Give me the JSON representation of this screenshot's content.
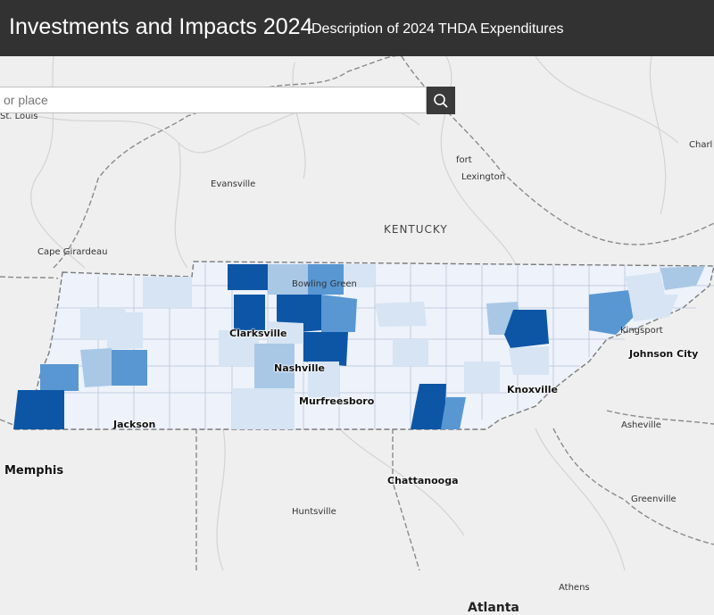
{
  "header": {
    "title": "Investments and Impacts 2024",
    "subtitle": "Description of 2024 THDA Expenditures"
  },
  "search": {
    "placeholder": "or place",
    "button_icon": "search-icon"
  },
  "map": {
    "state_label": "KENTUCKY",
    "places": {
      "st_louis": "St. Louis",
      "evansville": "Evansville",
      "cape_girardeau": "Cape Girardeau",
      "bowling_green": "Bowling Green",
      "lexington": "Lexington",
      "frankfort": "fort",
      "charleston": "Charl",
      "kingsport": "Kingsport",
      "asheville": "Asheville",
      "greenville": "Greenville",
      "huntsville": "Huntsville",
      "athens": "Athens",
      "atlanta": "Atlanta"
    },
    "tn_cities": {
      "clarksville": "Clarksville",
      "nashville": "Nashville",
      "murfreesboro": "Murfreesboro",
      "jackson": "Jackson",
      "knoxville": "Knoxville",
      "johnson_city": "Johnson City",
      "chattanooga": "Chattanooga"
    },
    "memphis": "Memphis"
  },
  "colors": {
    "header_bg": "#323232",
    "basemap": "#efefef",
    "tn_lightest": "#edf2fb",
    "tn_light": "#d6e4f3",
    "tn_mid": "#a9c8e6",
    "tn_medium": "#5897d2",
    "tn_dark": "#0d56a6"
  }
}
